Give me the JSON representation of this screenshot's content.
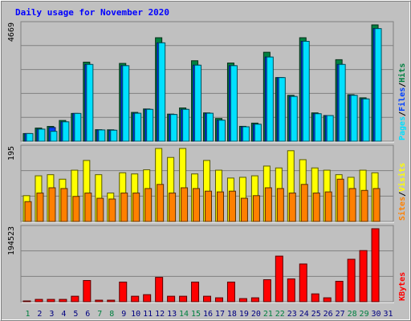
{
  "chart_data": {
    "type": "bar",
    "title": "Daily usage for November 2020",
    "colors": {
      "background": "#c0c0c0",
      "title": "#0000ff",
      "grid": "#808080",
      "hits": "#008040",
      "files": "#0040ff",
      "pages": "#00e0ff",
      "visits": "#ffff00",
      "sites": "#ff8000",
      "kbytes": "#ff0000",
      "weekend_label": "#008040",
      "weekday_label": "#000080"
    },
    "categories": [
      "1",
      "2",
      "3",
      "4",
      "5",
      "6",
      "7",
      "8",
      "9",
      "10",
      "11",
      "12",
      "13",
      "14",
      "15",
      "16",
      "17",
      "18",
      "19",
      "20",
      "21",
      "22",
      "23",
      "24",
      "25",
      "26",
      "27",
      "28",
      "29",
      "30",
      "31"
    ],
    "weekend_days": [
      1,
      7,
      8,
      14,
      15,
      21,
      22,
      28,
      29
    ],
    "panels": [
      {
        "id": "hits",
        "max_label": "4669",
        "ylim": [
          0,
          4669
        ],
        "legend": [
          {
            "text": "Hits",
            "color": "#008040"
          },
          {
            "text": "/",
            "color": "#000000"
          },
          {
            "text": "Files",
            "color": "#0040ff"
          },
          {
            "text": "/",
            "color": "#000000"
          },
          {
            "text": "Pages",
            "color": "#00e0ff"
          }
        ],
        "series": [
          {
            "name": "Hits",
            "values": [
              308,
              529,
              594,
              833,
              1115,
              3174,
              464,
              459,
              3123,
              1157,
              1295,
              4153,
              1089,
              1336,
              3229,
              1138,
              911,
              3139,
              598,
              727,
              3570,
              2554,
              1841,
              4153,
              1138,
              1031,
              3272,
              1868,
              1742,
              4669,
              0
            ]
          },
          {
            "name": "Files",
            "values": [
              308,
              485,
              550,
              779,
              1115,
              3081,
              453,
              442,
              3032,
              1123,
              1279,
              3948,
              1074,
              1279,
              3052,
              1123,
              844,
              3032,
              580,
              683,
              3378,
              2554,
              1797,
              4009,
              1104,
              1031,
              3081,
              1842,
              1698,
              4519,
              0
            ]
          },
          {
            "name": "Pages",
            "values": [
              308,
              485,
              397,
              779,
              1115,
              3081,
              453,
              442,
              3032,
              1123,
              1279,
              3948,
              1074,
              1279,
              3052,
              1123,
              844,
              3032,
              580,
              683,
              3378,
              2554,
              1797,
              4009,
              1104,
              1031,
              3081,
              1842,
              1698,
              4519,
              0
            ]
          }
        ]
      },
      {
        "id": "visits",
        "max_label": "195",
        "ylim": [
          0,
          195
        ],
        "legend": [
          {
            "text": "Visits",
            "color": "#ffff00"
          },
          {
            "text": "/",
            "color": "#000000"
          },
          {
            "text": "Sites",
            "color": "#ff8000"
          }
        ],
        "series": [
          {
            "name": "Visits",
            "values": [
              69,
              122,
              125,
              113,
              137,
              163,
              125,
              76,
              130,
              127,
              138,
              195,
              171,
              195,
              127,
              163,
              137,
              116,
              118,
              122,
              148,
              143,
              189,
              165,
              143,
              137,
              125,
              118,
              137,
              130,
              0
            ]
          },
          {
            "name": "Sites",
            "values": [
              53,
              76,
              90,
              88,
              67,
              76,
              62,
              60,
              76,
              76,
              88,
              99,
              76,
              90,
              88,
              81,
              79,
              81,
              62,
              69,
              90,
              88,
              76,
              99,
              76,
              79,
              113,
              88,
              83,
              88,
              0
            ]
          }
        ]
      },
      {
        "id": "kbytes",
        "max_label": "194523",
        "ylim": [
          0,
          194523
        ],
        "legend": [
          {
            "text": "KBytes",
            "color": "#ff0000"
          }
        ],
        "series": [
          {
            "name": "KBytes",
            "values": [
              2100,
              6300,
              6300,
              6300,
              14700,
              56600,
              4200,
              4200,
              52400,
              14700,
              18900,
              65000,
              14700,
              14700,
              52400,
              14700,
              10500,
              52400,
              8400,
              10500,
              58700,
              121600,
              60800,
              100600,
              21000,
              10500,
              54500,
              113200,
              136300,
              194523,
              0
            ]
          }
        ]
      }
    ]
  }
}
